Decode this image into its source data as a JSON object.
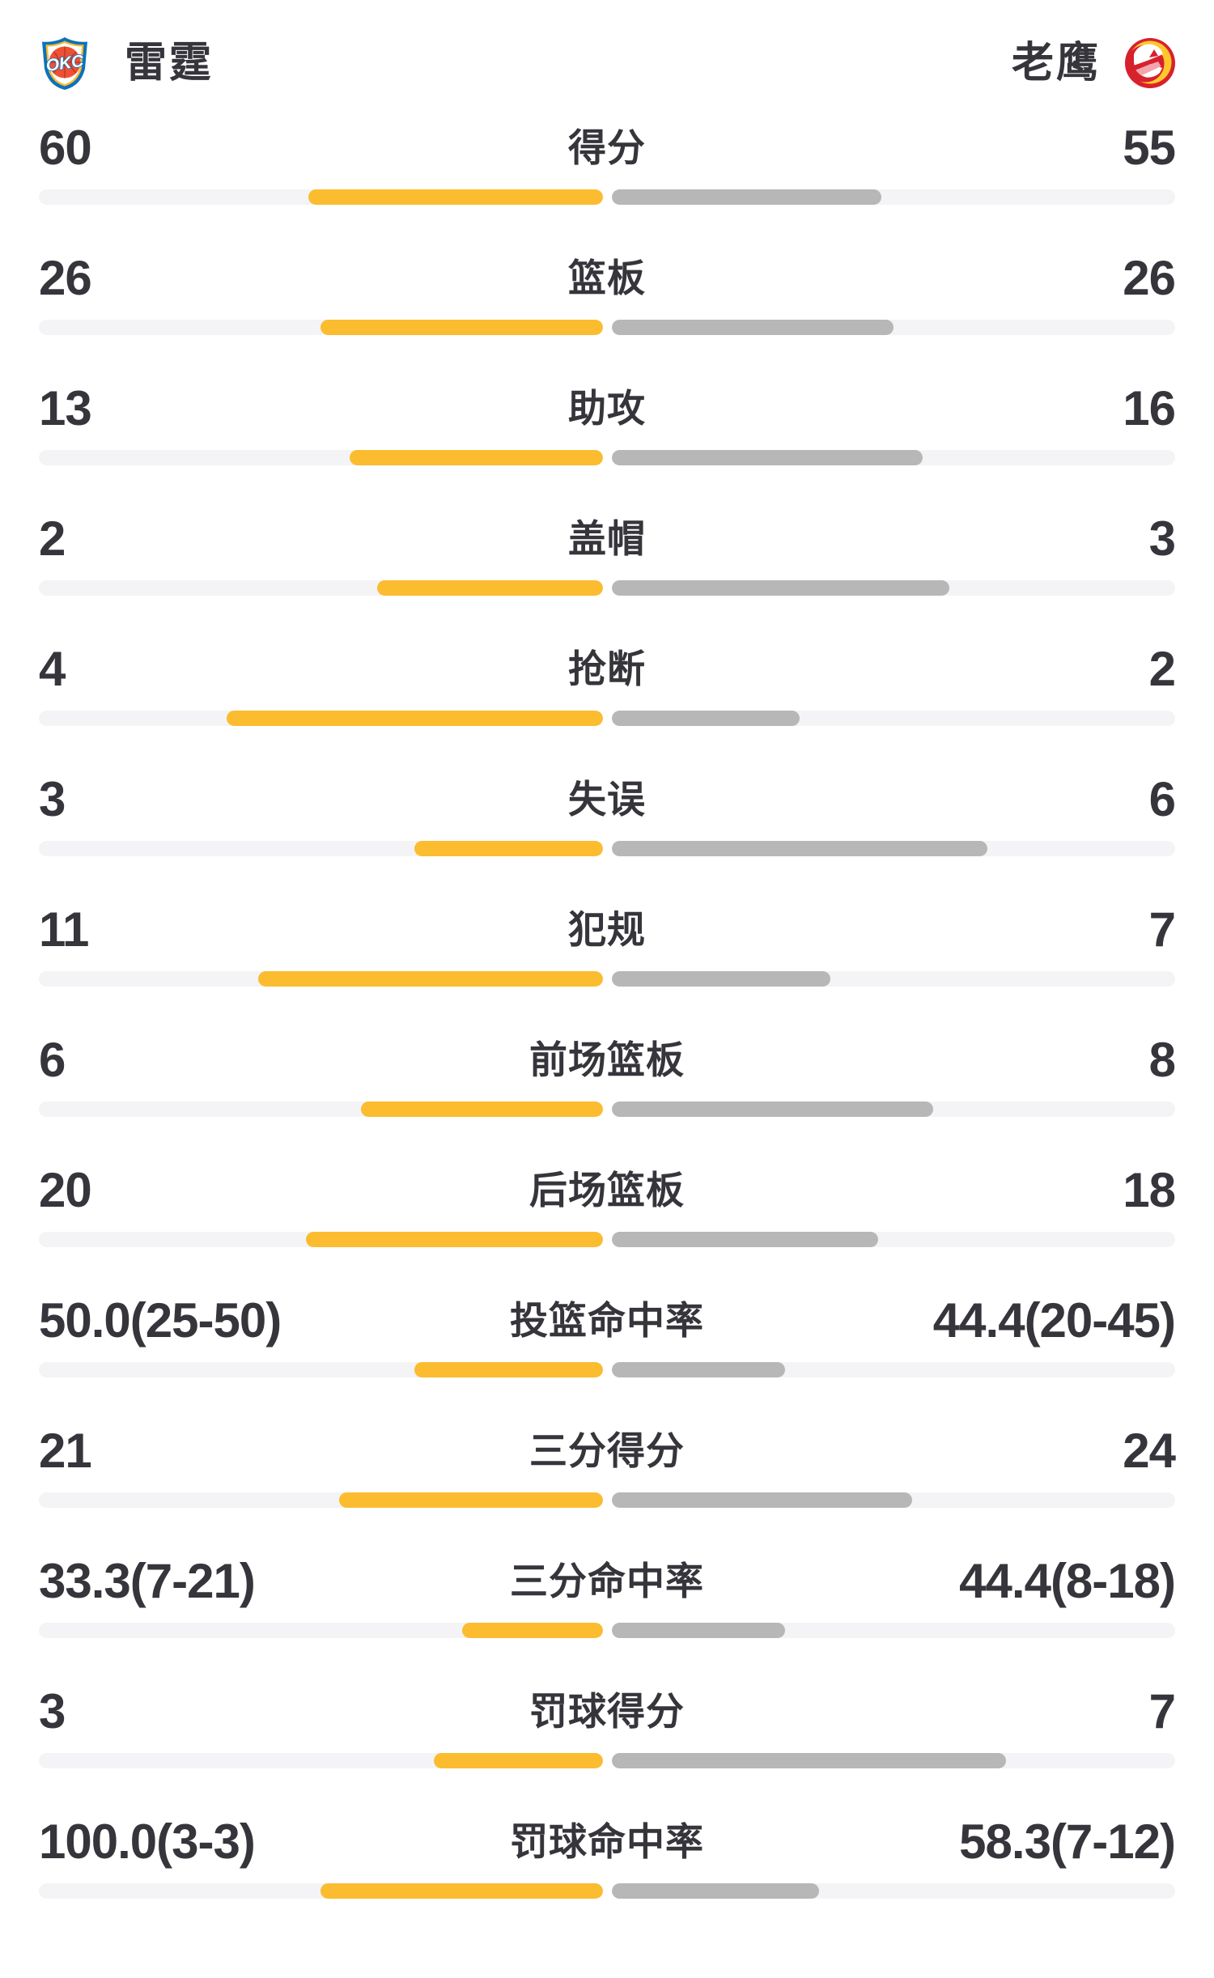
{
  "header": {
    "left_team": "雷霆",
    "right_team": "老鹰"
  },
  "colors": {
    "left_bar": "#FBBC30",
    "right_bar": "#B7B7B7",
    "bar_track": "#F4F4F6",
    "text": "#35353B",
    "okc_blue": "#0C72BA",
    "okc_orange": "#EF5133",
    "okc_yellow": "#FDBB30",
    "hawks_red": "#D7212D",
    "hawks_yellow": "#FFC72C",
    "hawks_pink": "#F3A5AD"
  },
  "chart_data": {
    "type": "bar",
    "orientation": "horizontal-paired",
    "legend_position": "top",
    "teams": [
      "雷霆",
      "老鹰"
    ],
    "bar_rule": "count rows: width = value/(left+right); percent rows: width = value/(value+100)",
    "rows": [
      {
        "label": "得分",
        "left": "60",
        "right": "55",
        "left_num": 60,
        "right_num": 55,
        "scale": "versus"
      },
      {
        "label": "篮板",
        "left": "26",
        "right": "26",
        "left_num": 26,
        "right_num": 26,
        "scale": "versus"
      },
      {
        "label": "助攻",
        "left": "13",
        "right": "16",
        "left_num": 13,
        "right_num": 16,
        "scale": "versus"
      },
      {
        "label": "盖帽",
        "left": "2",
        "right": "3",
        "left_num": 2,
        "right_num": 3,
        "scale": "versus"
      },
      {
        "label": "抢断",
        "left": "4",
        "right": "2",
        "left_num": 4,
        "right_num": 2,
        "scale": "versus"
      },
      {
        "label": "失误",
        "left": "3",
        "right": "6",
        "left_num": 3,
        "right_num": 6,
        "scale": "versus"
      },
      {
        "label": "犯规",
        "left": "11",
        "right": "7",
        "left_num": 11,
        "right_num": 7,
        "scale": "versus"
      },
      {
        "label": "前场篮板",
        "left": "6",
        "right": "8",
        "left_num": 6,
        "right_num": 8,
        "scale": "versus"
      },
      {
        "label": "后场篮板",
        "left": "20",
        "right": "18",
        "left_num": 20,
        "right_num": 18,
        "scale": "versus"
      },
      {
        "label": "投篮命中率",
        "left": "50.0(25-50)",
        "right": "44.4(20-45)",
        "left_num": 50.0,
        "right_num": 44.4,
        "scale": "percent"
      },
      {
        "label": "三分得分",
        "left": "21",
        "right": "24",
        "left_num": 21,
        "right_num": 24,
        "scale": "versus"
      },
      {
        "label": "三分命中率",
        "left": "33.3(7-21)",
        "right": "44.4(8-18)",
        "left_num": 33.3,
        "right_num": 44.4,
        "scale": "percent"
      },
      {
        "label": "罚球得分",
        "left": "3",
        "right": "7",
        "left_num": 3,
        "right_num": 7,
        "scale": "versus"
      },
      {
        "label": "罚球命中率",
        "left": "100.0(3-3)",
        "right": "58.3(7-12)",
        "left_num": 100.0,
        "right_num": 58.3,
        "scale": "percent"
      }
    ]
  }
}
